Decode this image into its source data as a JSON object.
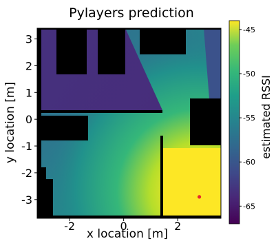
{
  "chart_data": {
    "type": "heatmap",
    "title": "Pylayers prediction",
    "xlabel": "x location [m]",
    "ylabel": "y location [m]",
    "xlim": [
      -3.2,
      3.6
    ],
    "ylim": [
      -3.7,
      3.4
    ],
    "x_ticks": [
      -2,
      0,
      2
    ],
    "x_tick_labels": [
      "-2",
      "0",
      "2"
    ],
    "y_ticks": [
      -3,
      -2,
      -1,
      0,
      1,
      2,
      3
    ],
    "y_tick_labels": [
      "-3",
      "-2",
      "-1",
      "0",
      "1",
      "2",
      "3"
    ],
    "colorbar": {
      "label": "estimated RSSI",
      "range": [
        -67,
        -44
      ],
      "ticks": [
        -65,
        -60,
        -55,
        -50,
        -45
      ],
      "tick_labels": [
        "-65",
        "-60",
        "-55",
        "-50",
        "-45"
      ],
      "colormap": "viridis"
    },
    "transmitter_marker": {
      "x": 2.8,
      "y": -2.9,
      "color": "#e8262a"
    },
    "obstacle_color": "#000000",
    "grid": false
  }
}
